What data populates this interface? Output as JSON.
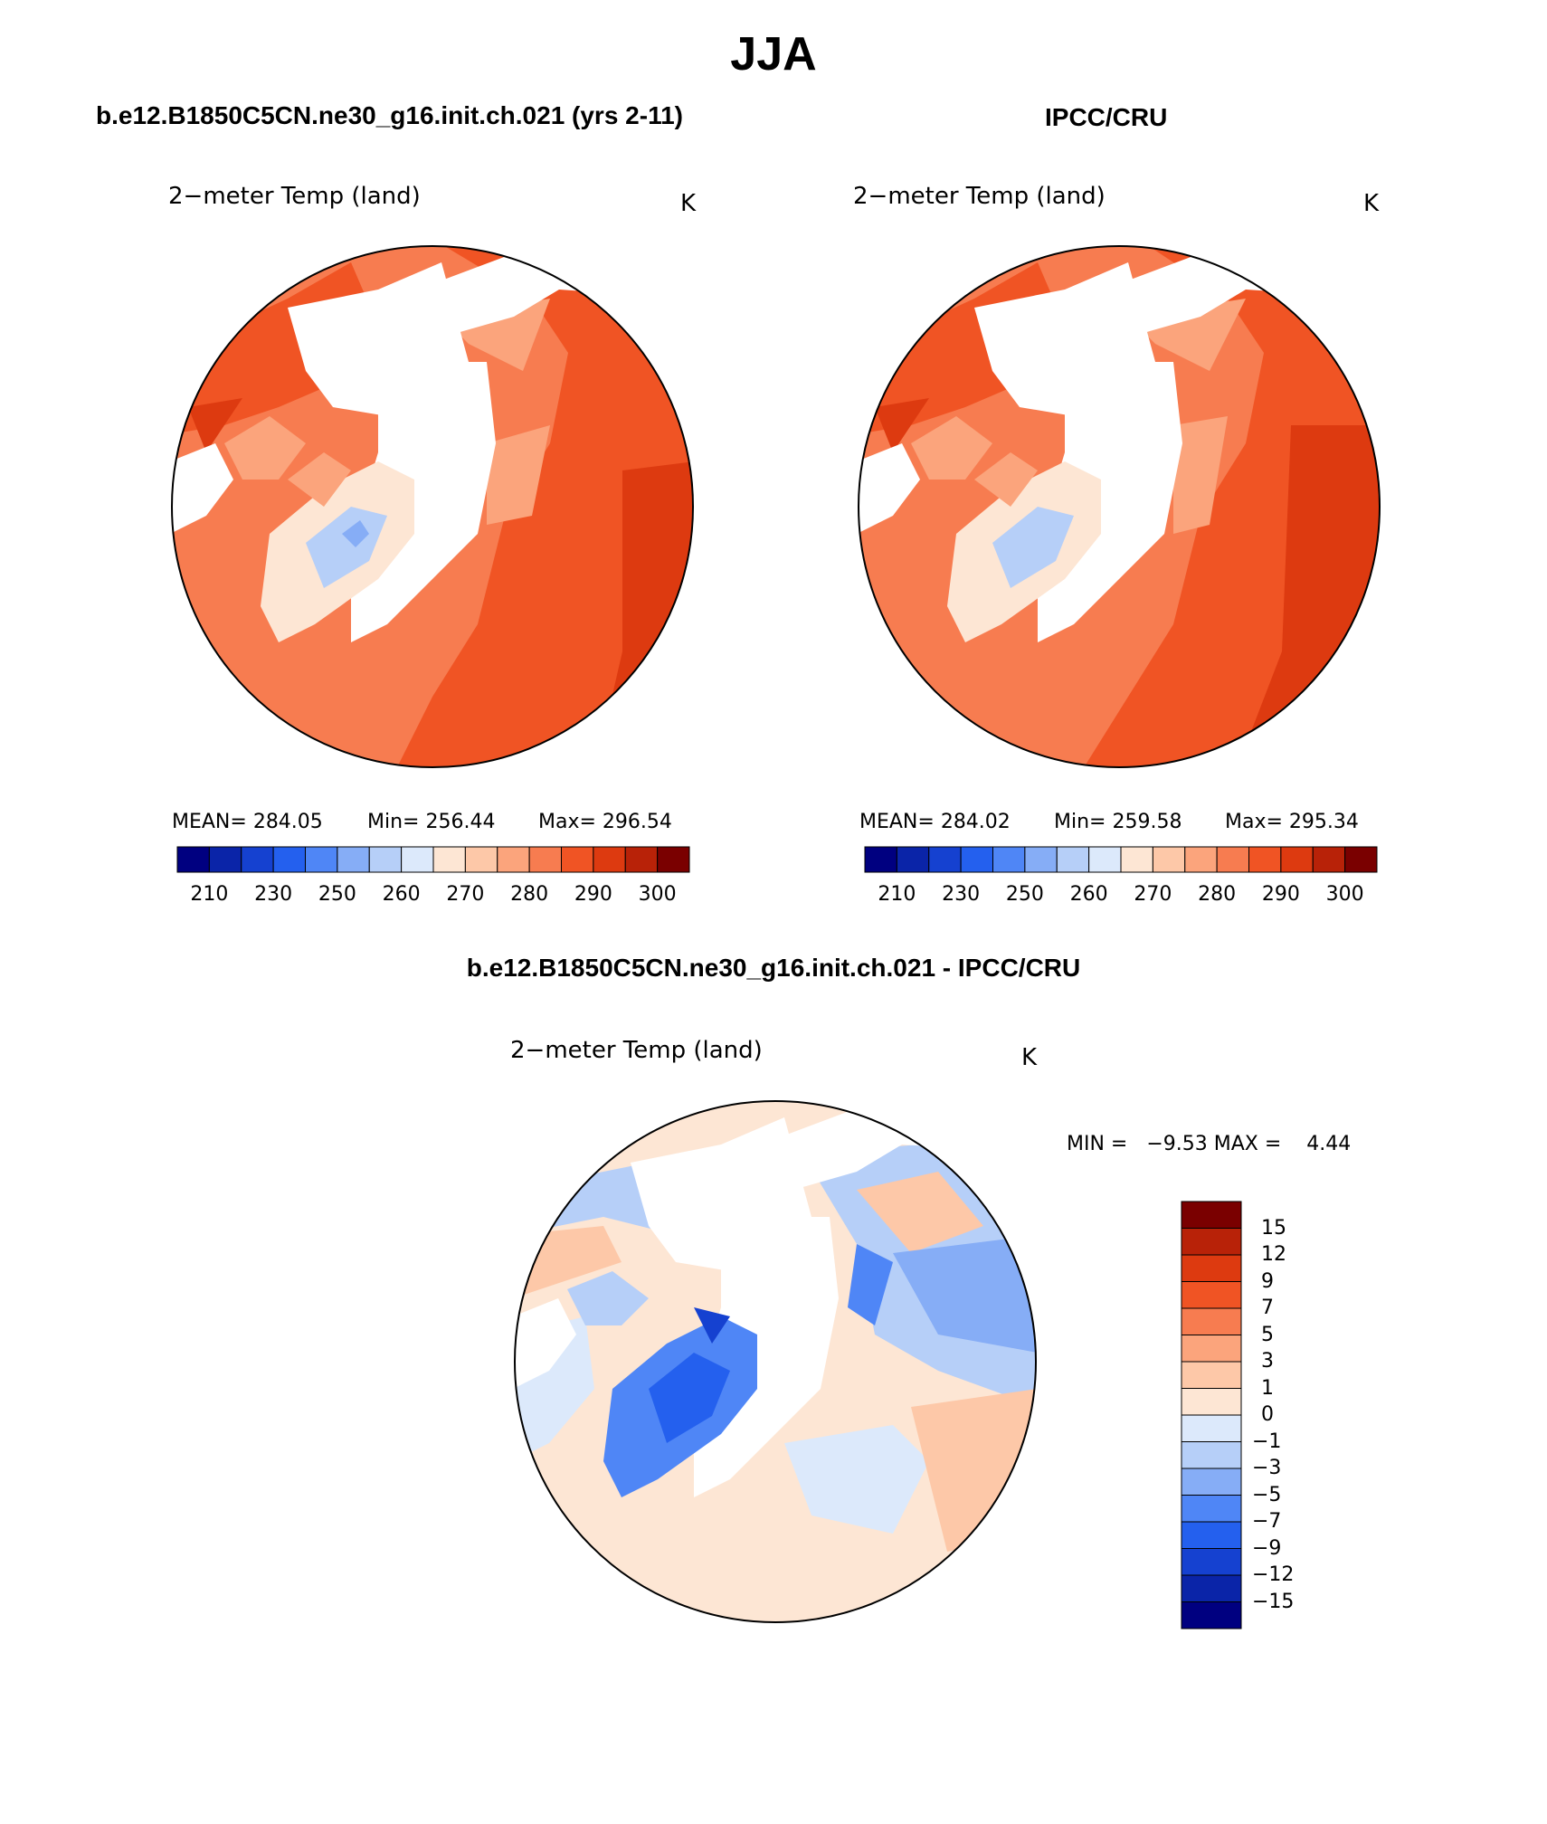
{
  "page_title": "JJA",
  "panels": [
    {
      "header": "b.e12.B1850C5CN.ne30_g16.init.ch.021 (yrs 2-11)",
      "variable": "2−meter Temp (land)",
      "units": "K",
      "stats": {
        "mean": "MEAN= 284.05",
        "min": "Min= 256.44",
        "max": "Max= 296.54"
      }
    },
    {
      "header": "IPCC/CRU",
      "variable": "2−meter Temp (land)",
      "units": "K",
      "stats": {
        "mean": "MEAN= 284.02",
        "min": "Min= 259.58",
        "max": "Max= 295.34"
      }
    },
    {
      "header": "b.e12.B1850C5CN.ne30_g16.init.ch.021 - IPCC/CRU",
      "variable": "2−meter Temp (land)",
      "units": "K",
      "minmax": "MIN =   −9.53 MAX =    4.44"
    }
  ],
  "abs_colorbar": {
    "colors": [
      "#000080",
      "#0a24a8",
      "#1541d0",
      "#2460ee",
      "#4f86f6",
      "#86adf6",
      "#b6cff8",
      "#dce9fb",
      "#fde6d4",
      "#fdc8a8",
      "#fba47c",
      "#f77c50",
      "#f05424",
      "#dd3a10",
      "#b82208",
      "#7a0000"
    ],
    "labels": [
      "210",
      "230",
      "250",
      "260",
      "270",
      "280",
      "290",
      "300"
    ]
  },
  "diff_colorbar": {
    "colors": [
      "#000080",
      "#0a24a8",
      "#1541d0",
      "#2460ee",
      "#4f86f6",
      "#86adf6",
      "#b6cff8",
      "#dce9fb",
      "#fde6d4",
      "#fdc8a8",
      "#fba47c",
      "#f77c50",
      "#f05424",
      "#dd3a10",
      "#b82208",
      "#7a0000"
    ],
    "labels": [
      "15",
      "12",
      "9",
      "7",
      "5",
      "3",
      "1",
      "0",
      "−1",
      "−3",
      "−5",
      "−7",
      "−9",
      "−12",
      "−15"
    ]
  }
}
